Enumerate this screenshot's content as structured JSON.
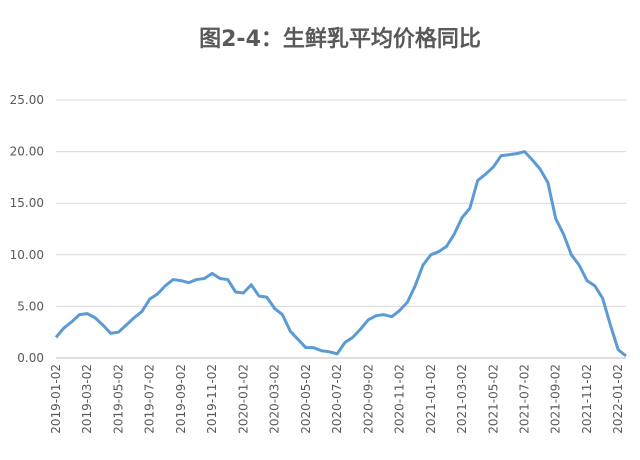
{
  "chart_data": {
    "type": "line",
    "title": "图2-4：生鲜乳平均价格同比",
    "categories": [
      "2019-01-02",
      null,
      null,
      null,
      "2019-03-02",
      null,
      null,
      null,
      "2019-05-02",
      null,
      null,
      null,
      "2019-07-02",
      null,
      null,
      null,
      "2019-09-02",
      null,
      null,
      null,
      "2019-11-02",
      null,
      null,
      null,
      "2020-01-02",
      null,
      null,
      null,
      "2020-03-02",
      null,
      null,
      null,
      "2020-05-02",
      null,
      null,
      null,
      "2020-07-02",
      null,
      null,
      null,
      "2020-09-02",
      null,
      null,
      null,
      "2020-11-02",
      null,
      null,
      null,
      "2021-01-02",
      null,
      null,
      null,
      "2021-03-02",
      null,
      null,
      null,
      "2021-05-02",
      null,
      null,
      null,
      "2021-07-02",
      null,
      null,
      null,
      "2021-09-02",
      null,
      null,
      null,
      "2021-11-02",
      null,
      null,
      null,
      "2022-01-02",
      null
    ],
    "series": [
      {
        "color": "#5b9bd5",
        "values": [
          2.0,
          2.9,
          3.5,
          4.2,
          4.3,
          3.9,
          3.2,
          2.4,
          2.5,
          3.2,
          3.9,
          4.5,
          5.7,
          6.2,
          7.0,
          7.6,
          7.5,
          7.3,
          7.6,
          7.7,
          8.2,
          7.7,
          7.6,
          6.4,
          6.3,
          7.1,
          6.0,
          5.9,
          4.8,
          4.2,
          2.6,
          1.8,
          1.0,
          1.0,
          0.7,
          0.6,
          0.4,
          1.5,
          2.0,
          2.8,
          3.7,
          4.1,
          4.2,
          4.0,
          4.6,
          5.4,
          7.0,
          9.0,
          10.0,
          10.3,
          10.8,
          12.0,
          13.6,
          14.5,
          17.2,
          17.8,
          18.5,
          19.6,
          19.7,
          19.8,
          20.0,
          19.2,
          18.3,
          17.0,
          13.5,
          12.0,
          10.0,
          9.0,
          7.5,
          7.0,
          5.8,
          3.2,
          0.8,
          0.2
        ]
      }
    ],
    "ylim": [
      0,
      25
    ],
    "yticks": [
      {
        "value": 0,
        "label": "0.00"
      },
      {
        "value": 5,
        "label": "5.00"
      },
      {
        "value": 10,
        "label": "10.00"
      },
      {
        "value": 15,
        "label": "15.00"
      },
      {
        "value": 20,
        "label": "20.00"
      },
      {
        "value": 25,
        "label": "25.00"
      }
    ],
    "grid": true
  }
}
